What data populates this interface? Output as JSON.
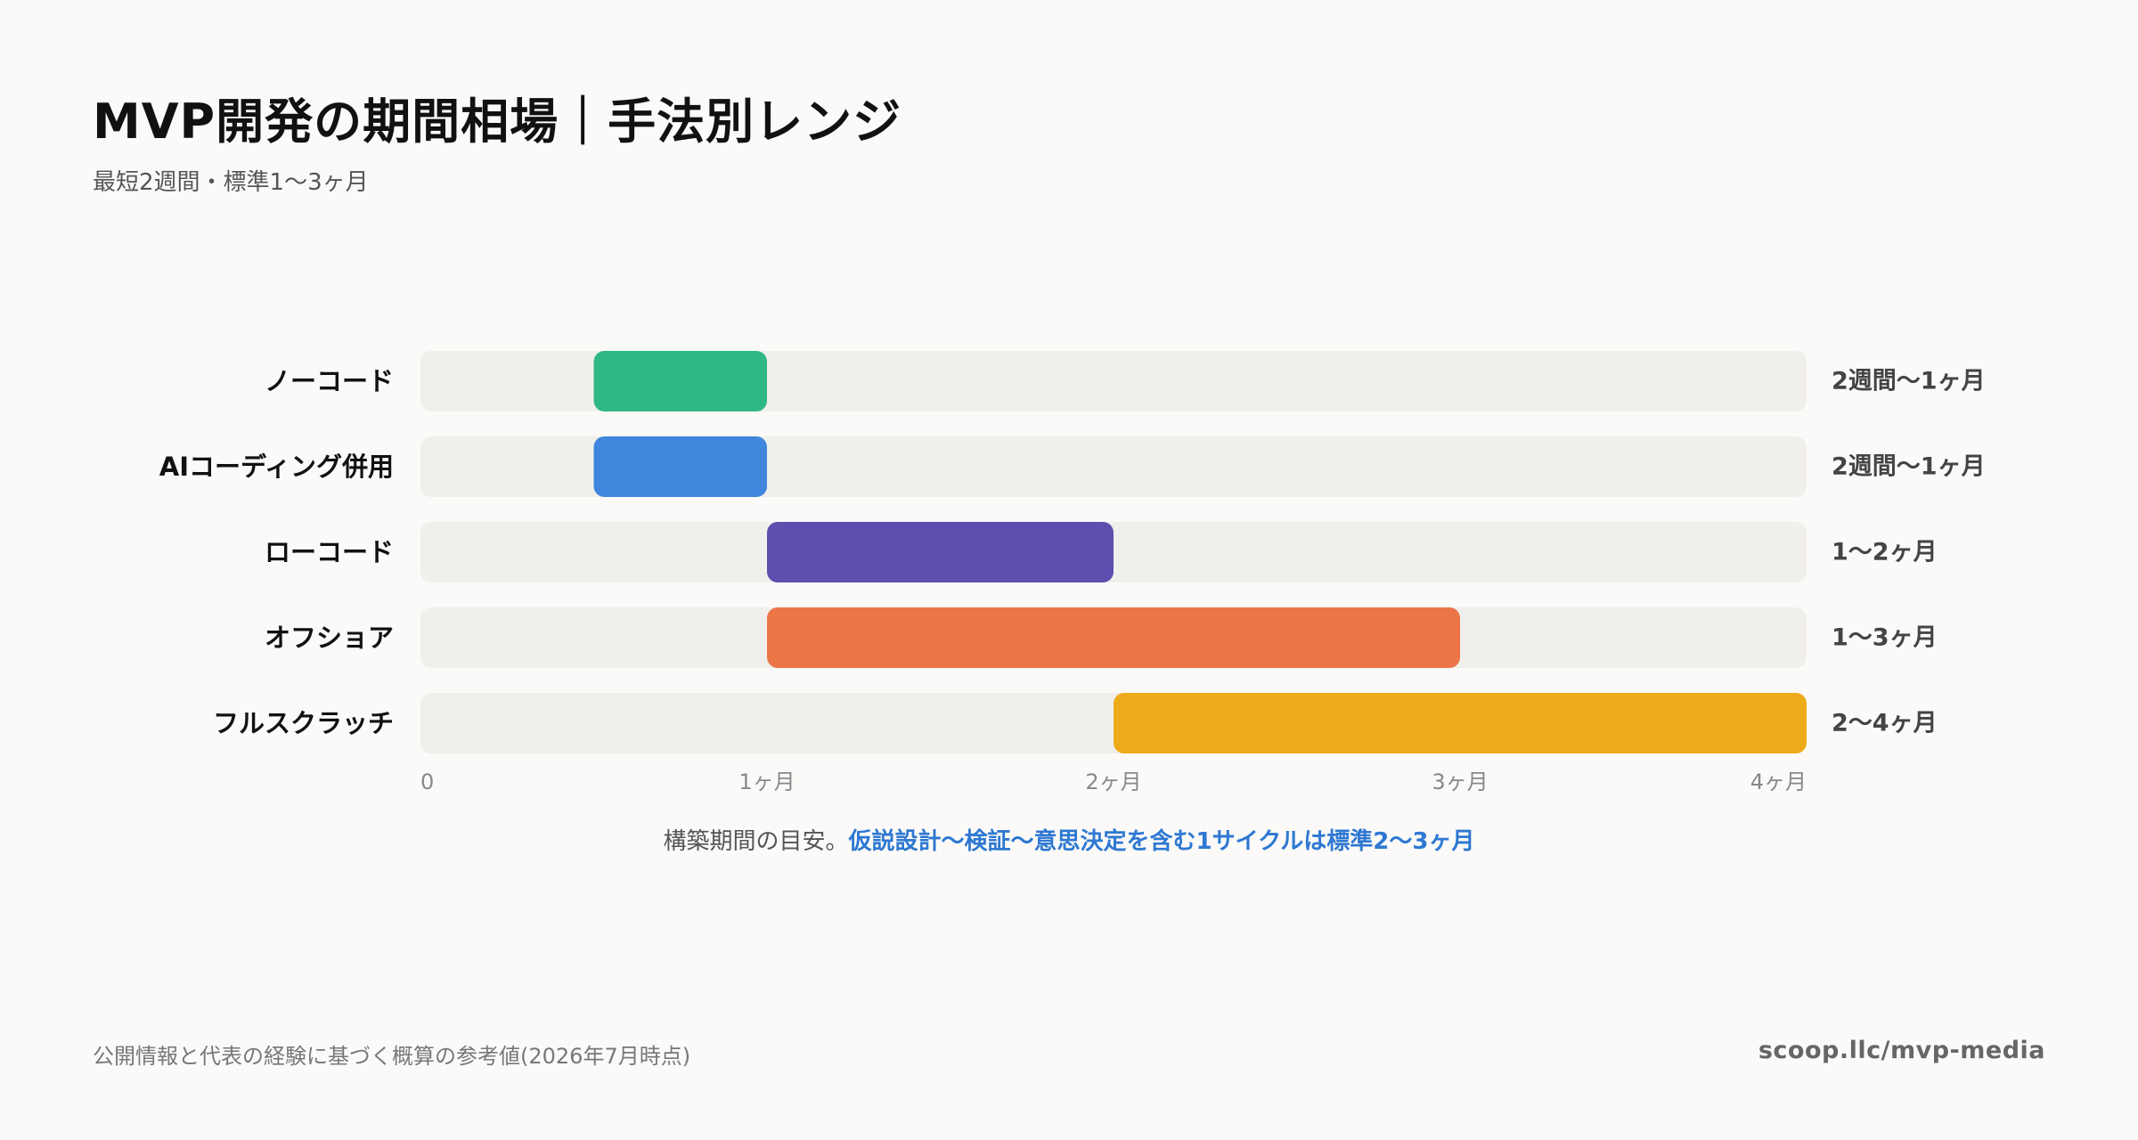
{
  "title": "MVP開発の期間相場｜手法別レンジ",
  "subtitle": "最短2週間・標準1〜3ヶ月",
  "note": {
    "prefix": "構築期間の目安。",
    "highlight": "仮説設計〜検証〜意思決定を含む1サイクルは標準2〜3ヶ月",
    "highlight_color": "#2e78d2"
  },
  "footer": {
    "source": "公開情報と代表の経験に基づく概算の参考値(2026年7月時点)",
    "url": "scoop.llc/mvp-media"
  },
  "colors": {
    "background": "#fbfaf8",
    "track": "#f1efec"
  },
  "chart_data": {
    "type": "bar",
    "orientation": "horizontal-range",
    "title": "",
    "xlabel": "",
    "ylabel": "",
    "xlim": [
      0,
      4
    ],
    "x_unit": "months",
    "x_ticks": [
      {
        "value": 0,
        "label": "0"
      },
      {
        "value": 1,
        "label": "1ヶ月"
      },
      {
        "value": 2,
        "label": "2ヶ月"
      },
      {
        "value": 3,
        "label": "3ヶ月"
      },
      {
        "value": 4,
        "label": "4ヶ月"
      }
    ],
    "grid": false,
    "categories": [
      "ノーコード",
      "AIコーディング併用",
      "ローコード",
      "オフショア",
      "フルスクラッチ"
    ],
    "ranges": [
      {
        "category": "ノーコード",
        "start": 0.5,
        "end": 1,
        "label": "2週間〜1ヶ月",
        "color": "#2fb886"
      },
      {
        "category": "AIコーディング併用",
        "start": 0.5,
        "end": 1,
        "label": "2週間〜1ヶ月",
        "color": "#3f86dc"
      },
      {
        "category": "ローコード",
        "start": 1,
        "end": 2,
        "label": "1〜2ヶ月",
        "color": "#5d4faf"
      },
      {
        "category": "オフショア",
        "start": 1,
        "end": 3,
        "label": "1〜3ヶ月",
        "color": "#ec7547"
      },
      {
        "category": "フルスクラッチ",
        "start": 2,
        "end": 4,
        "label": "2〜4ヶ月",
        "color": "#edaa19"
      }
    ]
  }
}
